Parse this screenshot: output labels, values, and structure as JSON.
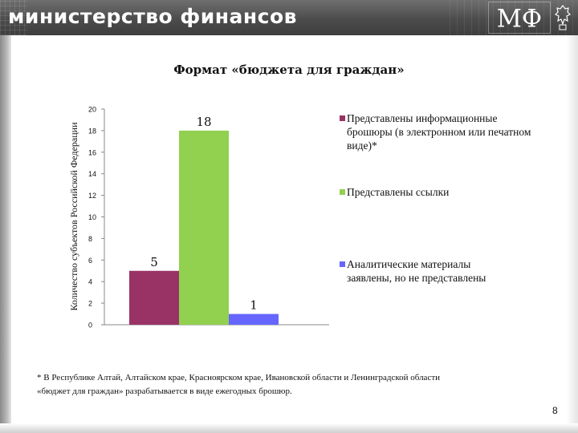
{
  "header": {
    "title": "министерство финансов",
    "logo_text": "МФ",
    "colors": {
      "banner": "#555555",
      "text": "#ffffff"
    }
  },
  "chart_data": {
    "type": "bar",
    "title": "Формат «бюджета для граждан»",
    "ylabel": "Количество субъектов Российской Федерации",
    "xlabel": "",
    "ylim": [
      0,
      20
    ],
    "yticks": [
      0,
      2,
      4,
      6,
      8,
      10,
      12,
      14,
      16,
      18,
      20
    ],
    "grid": false,
    "legend_position": "right",
    "series": [
      {
        "name": "Представлены информационные брошюры (в электронном или печатном виде)*",
        "value": 5,
        "label": "5",
        "color": "#993366"
      },
      {
        "name": "Представлены ссылки",
        "value": 18,
        "label": "18",
        "color": "#92d050"
      },
      {
        "name": "Аналитические материалы заявлены, но не представлены",
        "value": 1,
        "label": "1",
        "color": "#6666ff"
      }
    ]
  },
  "footnote": {
    "line1": "* В Республике Алтай, Алтайском крае, Красноярском крае, Ивановской области и Ленинградской области",
    "line2": "«бюджет для граждан» разрабатывается в виде ежегодных брошюр."
  },
  "page_number": "8"
}
